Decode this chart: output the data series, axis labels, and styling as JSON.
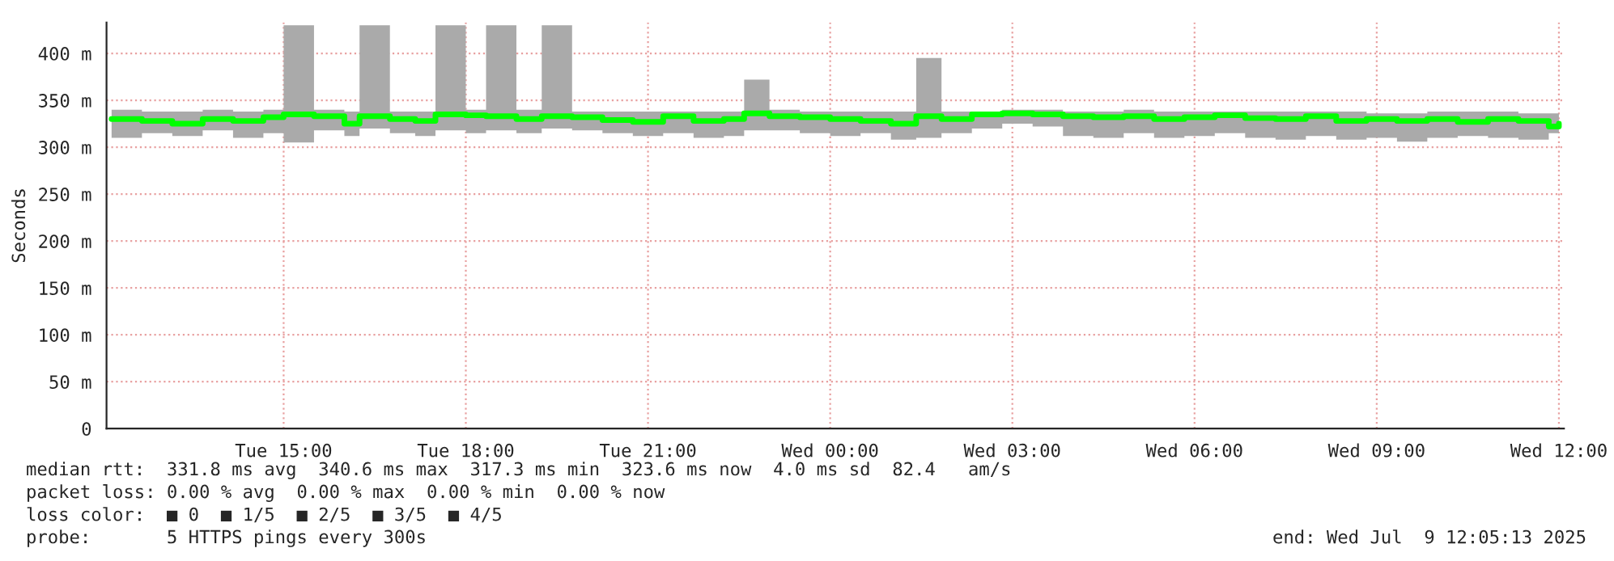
{
  "chart_data": {
    "type": "step",
    "ylabel": "Seconds",
    "x": [
      "2025-07-08T12:10",
      "2025-07-08T12:40",
      "2025-07-08T13:10",
      "2025-07-08T13:40",
      "2025-07-08T14:10",
      "2025-07-08T14:40",
      "2025-07-08T15:00",
      "2025-07-08T15:30",
      "2025-07-08T16:00",
      "2025-07-08T16:15",
      "2025-07-08T16:45",
      "2025-07-08T17:10",
      "2025-07-08T17:30",
      "2025-07-08T18:00",
      "2025-07-08T18:20",
      "2025-07-08T18:50",
      "2025-07-08T19:15",
      "2025-07-08T19:45",
      "2025-07-08T20:15",
      "2025-07-08T20:45",
      "2025-07-08T21:15",
      "2025-07-08T21:45",
      "2025-07-08T22:15",
      "2025-07-08T22:35",
      "2025-07-08T23:00",
      "2025-07-08T23:30",
      "2025-07-09T00:00",
      "2025-07-09T00:30",
      "2025-07-09T01:00",
      "2025-07-09T01:25",
      "2025-07-09T01:50",
      "2025-07-09T02:20",
      "2025-07-09T02:50",
      "2025-07-09T03:20",
      "2025-07-09T03:50",
      "2025-07-09T04:20",
      "2025-07-09T04:50",
      "2025-07-09T05:20",
      "2025-07-09T05:50",
      "2025-07-09T06:20",
      "2025-07-09T06:50",
      "2025-07-09T07:20",
      "2025-07-09T07:50",
      "2025-07-09T08:20",
      "2025-07-09T08:50",
      "2025-07-09T09:20",
      "2025-07-09T09:50",
      "2025-07-09T10:20",
      "2025-07-09T10:50",
      "2025-07-09T11:20",
      "2025-07-09T11:50",
      "2025-07-09T12:00"
    ],
    "series": [
      {
        "color": "#00ff00",
        "values": [
          330,
          328,
          325,
          330,
          328,
          332,
          335,
          333,
          325,
          333,
          330,
          328,
          335,
          334,
          333,
          330,
          333,
          332,
          329,
          327,
          333,
          328,
          330,
          336,
          333,
          332,
          330,
          328,
          325,
          333,
          330,
          335,
          336,
          335,
          333,
          332,
          333,
          330,
          332,
          334,
          331,
          330,
          333,
          328,
          330,
          328,
          330,
          327,
          330,
          328,
          322,
          325
        ],
        "lower": [
          310,
          315,
          312,
          318,
          310,
          315,
          305,
          318,
          312,
          320,
          315,
          312,
          318,
          315,
          318,
          315,
          320,
          318,
          315,
          312,
          315,
          310,
          312,
          318,
          318,
          315,
          312,
          315,
          308,
          310,
          315,
          320,
          325,
          322,
          312,
          310,
          315,
          310,
          312,
          315,
          310,
          308,
          312,
          308,
          310,
          306,
          310,
          312,
          310,
          308,
          315,
          318
        ],
        "upper": [
          340,
          338,
          338,
          340,
          338,
          340,
          430,
          340,
          338,
          430,
          338,
          338,
          430,
          340,
          430,
          340,
          430,
          338,
          338,
          338,
          338,
          338,
          338,
          372,
          340,
          338,
          338,
          338,
          338,
          395,
          338,
          338,
          340,
          340,
          338,
          338,
          340,
          338,
          338,
          338,
          338,
          338,
          338,
          338,
          336,
          336,
          338,
          338,
          338,
          336,
          336,
          334
        ]
      }
    ],
    "xlim": [
      "2025-07-08T12:05",
      "2025-07-09T12:05"
    ],
    "xticks": [
      {
        "value": "2025-07-08T15:00",
        "label": "Tue 15:00"
      },
      {
        "value": "2025-07-08T18:00",
        "label": "Tue 18:00"
      },
      {
        "value": "2025-07-08T21:00",
        "label": "Tue 21:00"
      },
      {
        "value": "2025-07-09T00:00",
        "label": "Wed 00:00"
      },
      {
        "value": "2025-07-09T03:00",
        "label": "Wed 03:00"
      },
      {
        "value": "2025-07-09T06:00",
        "label": "Wed 06:00"
      },
      {
        "value": "2025-07-09T09:00",
        "label": "Wed 09:00"
      },
      {
        "value": "2025-07-09T12:00",
        "label": "Wed 12:00"
      }
    ],
    "ylim": [
      0,
      433
    ],
    "yticks": [
      0,
      {
        "value": 50,
        "label": "50 m"
      },
      {
        "value": 100,
        "label": "100 m"
      },
      {
        "value": 150,
        "label": "150 m"
      },
      {
        "value": 200,
        "label": "200 m"
      },
      {
        "value": 250,
        "label": "250 m"
      },
      {
        "value": 300,
        "label": "300 m"
      },
      {
        "value": 350,
        "label": "350 m"
      },
      {
        "value": 400,
        "label": "400 m"
      }
    ],
    "grid": true,
    "legend": false,
    "annotations": [
      "median rtt:  331.8 ms avg  340.6 ms max  317.3 ms min  323.6 ms now  4.0 ms sd  82.4   am/s",
      "packet loss: 0.00 % avg  0.00 % max  0.00 % min  0.00 % now",
      "loss color:  ■ 0  ■ 1/5  ■ 2/5  ■ 3/5  ■ 4/5",
      "probe:       5 HTTPS pings every 300s",
      "end: Wed Jul  9 12:05:13 2025"
    ]
  }
}
